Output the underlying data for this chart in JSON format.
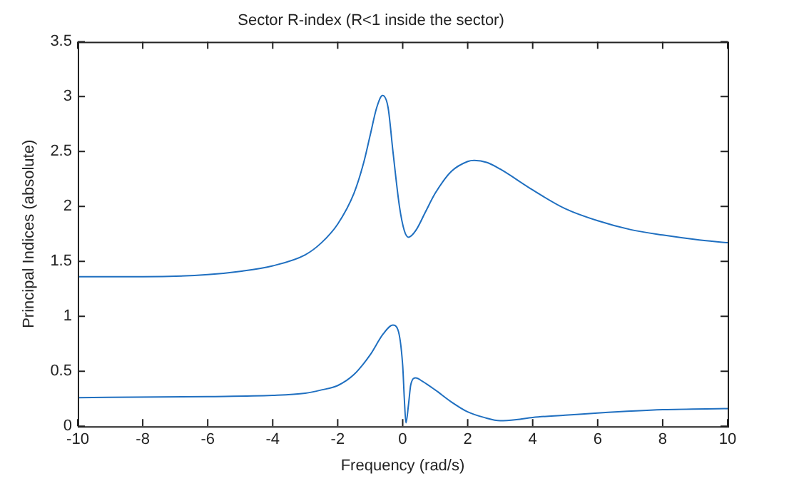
{
  "chart_data": {
    "type": "line",
    "title": "Sector R-index (R<1 inside the sector)",
    "xlabel": "Frequency (rad/s)",
    "ylabel": "Principal Indices (absolute)",
    "xlim": [
      -10,
      10
    ],
    "xticks": [
      -10,
      -8,
      -6,
      -4,
      -2,
      0,
      2,
      4,
      6,
      8,
      10
    ],
    "ylim": [
      0,
      3.5
    ],
    "yticks": [
      0,
      0.5,
      1,
      1.5,
      2,
      2.5,
      3,
      3.5
    ],
    "grid": false,
    "legend": false,
    "marker": "none",
    "line_style": "solid",
    "series": [
      {
        "color": "#1f6fc0",
        "x": [
          -10,
          -8,
          -6,
          -5,
          -4,
          -3,
          -2.5,
          -2,
          -1.5,
          -1.2,
          -1,
          -0.8,
          -0.62,
          -0.45,
          -0.3,
          -0.1,
          0.05,
          0.18,
          0.4,
          0.7,
          1,
          1.5,
          2,
          2.2,
          2.6,
          3,
          4,
          5,
          6,
          7,
          8,
          9,
          10
        ],
        "values": [
          1.36,
          1.36,
          1.38,
          1.41,
          1.46,
          1.56,
          1.67,
          1.84,
          2.12,
          2.4,
          2.65,
          2.9,
          3.01,
          2.9,
          2.5,
          2.0,
          1.78,
          1.72,
          1.78,
          1.95,
          2.12,
          2.32,
          2.41,
          2.42,
          2.4,
          2.34,
          2.15,
          1.98,
          1.87,
          1.79,
          1.74,
          1.7,
          1.67
        ]
      },
      {
        "color": "#1f6fc0",
        "x": [
          -10,
          -6,
          -4,
          -3,
          -2.5,
          -2,
          -1.5,
          -1,
          -0.6,
          -0.3,
          -0.15,
          0,
          0.05,
          0.1,
          0.18,
          0.25,
          0.4,
          0.6,
          1,
          1.5,
          2,
          2.5,
          3,
          3.5,
          4,
          5,
          6,
          8,
          10
        ],
        "values": [
          0.26,
          0.27,
          0.28,
          0.3,
          0.33,
          0.37,
          0.47,
          0.65,
          0.84,
          0.92,
          0.88,
          0.55,
          0.25,
          0.03,
          0.2,
          0.38,
          0.44,
          0.41,
          0.33,
          0.22,
          0.13,
          0.08,
          0.05,
          0.06,
          0.08,
          0.1,
          0.12,
          0.15,
          0.16
        ]
      }
    ]
  }
}
